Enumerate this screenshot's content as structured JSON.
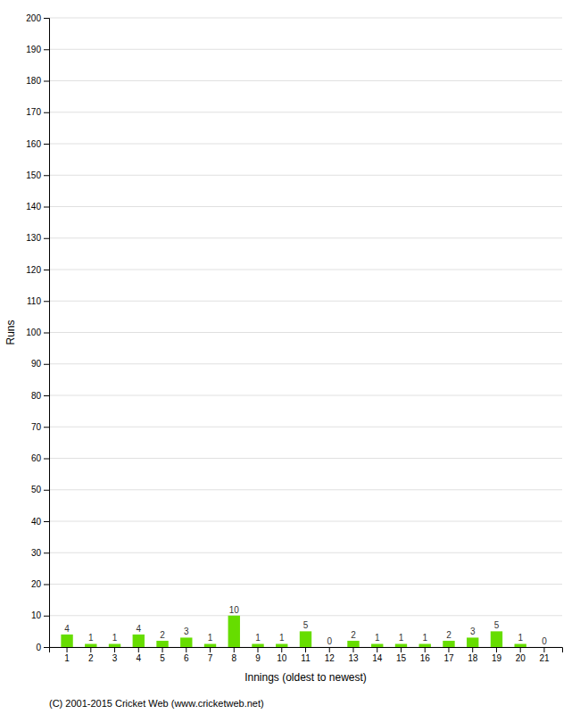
{
  "chart_data": {
    "type": "bar",
    "categories": [
      "1",
      "2",
      "3",
      "4",
      "5",
      "6",
      "7",
      "8",
      "9",
      "10",
      "11",
      "12",
      "13",
      "14",
      "15",
      "16",
      "17",
      "18",
      "19",
      "20",
      "21"
    ],
    "values": [
      4,
      1,
      1,
      4,
      2,
      3,
      1,
      10,
      1,
      1,
      5,
      0,
      2,
      1,
      1,
      1,
      2,
      3,
      5,
      1,
      0
    ],
    "color": "#66dd00",
    "xlabel": "Innings (oldest to newest)",
    "ylabel": "Runs",
    "ylim": [
      0,
      200
    ],
    "yticks": [
      0,
      10,
      20,
      30,
      40,
      50,
      60,
      70,
      80,
      90,
      100,
      110,
      120,
      130,
      140,
      150,
      160,
      170,
      180,
      190,
      200
    ],
    "grid": true,
    "data_labels": true,
    "annotations": [
      "(C) 2001-2015 Cricket Web (www.cricketweb.net)"
    ]
  }
}
